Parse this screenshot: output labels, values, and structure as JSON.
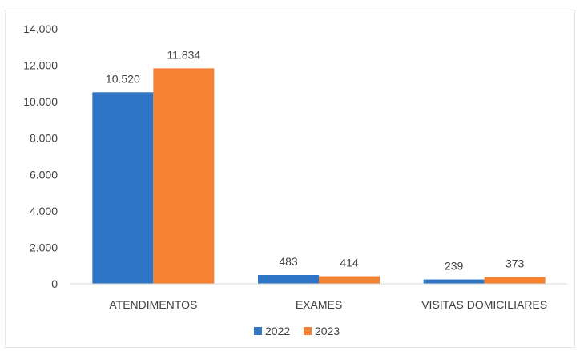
{
  "chart_data": {
    "type": "bar",
    "title": "",
    "xlabel": "",
    "ylabel": "",
    "categories": [
      "ATENDIMENTOS",
      "EXAMES",
      "VISITAS DOMICILIARES"
    ],
    "series": [
      {
        "name": "2022",
        "color": "#2e75c6",
        "values": [
          10520,
          483,
          239
        ],
        "labels": [
          "10.520",
          "483",
          "239"
        ]
      },
      {
        "name": "2023",
        "color": "#f58232",
        "values": [
          11834,
          414,
          373
        ],
        "labels": [
          "11.834",
          "414",
          "373"
        ]
      }
    ],
    "ylim": [
      0,
      14000
    ],
    "yticks": [
      0,
      2000,
      4000,
      6000,
      8000,
      10000,
      12000,
      14000
    ],
    "ytick_labels": [
      "0",
      "2.000",
      "4.000",
      "6.000",
      "8.000",
      "10.000",
      "12.000",
      "14.000"
    ],
    "grid": false,
    "legend_position": "bottom"
  }
}
